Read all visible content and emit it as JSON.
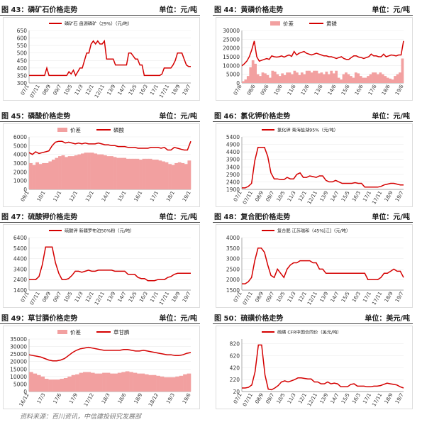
{
  "source_note": "资料来源：百川资讯，中信建投研究发展部",
  "colors": {
    "line": "#d40000",
    "bar": "#f2a0a0"
  },
  "chart_data": [
    {
      "id": "c43",
      "type": "line",
      "title": "图 43：磷矿石价格走势",
      "unit": "单位：元/吨",
      "legend": [
        "磷矿石  盘源磷矿（29%）（元/吨）"
      ],
      "ylim": [
        300,
        650
      ],
      "yticks": [
        300,
        350,
        400,
        450,
        500,
        550,
        600,
        650
      ],
      "xticks": [
        "07/1",
        "07/11",
        "08/9",
        "09/7",
        "10/5",
        "11/3",
        "12/1",
        "12/11",
        "13/9",
        "14/7",
        "15/5",
        "16/3",
        "17/1",
        "17/11",
        "18/9",
        "19/7"
      ],
      "series": [
        {
          "values": [
            350,
            350,
            350,
            350,
            350,
            350,
            350,
            350,
            400,
            350,
            350,
            350,
            350,
            350,
            350,
            350,
            350,
            350,
            375,
            360,
            385,
            350,
            375,
            400,
            400,
            450,
            500,
            500,
            560,
            580,
            560,
            580,
            560,
            560,
            580,
            460,
            460,
            460,
            460,
            420,
            420,
            420,
            420,
            420,
            420,
            500,
            500,
            480,
            460,
            460,
            420,
            420,
            350,
            350,
            350,
            350,
            350,
            350,
            350,
            350,
            360,
            400,
            400,
            400,
            400,
            420,
            450,
            500,
            500,
            500,
            460,
            420,
            410,
            410
          ]
        }
      ]
    },
    {
      "id": "c44",
      "type": "bar+line",
      "title": "图 44：黄磷价格走势",
      "unit": "单位：元/吨",
      "legend": [
        "价差",
        "黄磷"
      ],
      "ylim": [
        0,
        30000
      ],
      "yticks": [
        0,
        5000,
        10000,
        15000,
        20000,
        25000,
        30000
      ],
      "xticks": [
        "07/6",
        "08/6",
        "09/6",
        "10/6",
        "11/6",
        "12/6",
        "13/6",
        "14/6",
        "15/6",
        "16/6",
        "17/6",
        "18/6",
        "19/6"
      ],
      "series": [
        {
          "name": "黄磷",
          "values": [
            9800,
            11000,
            12500,
            15000,
            19000,
            24000,
            15000,
            12500,
            13000,
            13500,
            14000,
            13500,
            15500,
            15000,
            14800,
            15000,
            15500,
            14800,
            15500,
            16000,
            15200,
            18000,
            16000,
            17000,
            17500,
            18000,
            17000,
            16500,
            16000,
            16500,
            17000,
            16500,
            16000,
            15500,
            15500,
            15000,
            15000,
            14500,
            14000,
            14500,
            15000,
            14000,
            13500,
            13500,
            14500,
            15500,
            15500,
            14800,
            14500,
            14000,
            14500,
            15000,
            16500,
            15500,
            15500,
            15000,
            15000,
            16500,
            15000,
            15500,
            16000,
            15800,
            15500,
            16000,
            16000,
            24000
          ]
        },
        {
          "name": "价差",
          "values": [
            1000,
            2000,
            4000,
            9000,
            13000,
            11000,
            5000,
            4000,
            6000,
            5500,
            4500,
            3000,
            7000,
            6500,
            5000,
            4000,
            5500,
            4500,
            6000,
            6000,
            5000,
            7000,
            6000,
            4500,
            6000,
            5000,
            7000,
            7000,
            6000,
            7000,
            7000,
            5500,
            6000,
            5000,
            6500,
            5000,
            7000,
            5500,
            7000,
            3000,
            2000,
            5000,
            6000,
            5000,
            4000,
            3000,
            6000,
            5500,
            4000,
            3000,
            3000,
            4000,
            5000,
            6000,
            6000,
            5000,
            6000,
            5000,
            4000,
            3000,
            2500,
            2000,
            4000,
            5000,
            6000,
            14000
          ]
        }
      ]
    },
    {
      "id": "c45",
      "type": "bar+line",
      "title": "图 45：磷酸价格走势",
      "unit": "单位：元/吨",
      "legend": [
        "价差",
        "磷酸"
      ],
      "ylim": [
        0,
        6000
      ],
      "yticks": [
        0,
        1000,
        2000,
        3000,
        4000,
        5000,
        6000
      ],
      "xticks": [
        "09/1",
        "10/1",
        "11/1",
        "12/1",
        "13/1",
        "14/1",
        "15/1",
        "16/1",
        "17/1",
        "18/1",
        "19/1"
      ],
      "series": [
        {
          "name": "磷酸",
          "values": [
            4200,
            4000,
            4300,
            4100,
            4200,
            4300,
            4400,
            5000,
            5400,
            5500,
            5500,
            5300,
            5400,
            5300,
            5200,
            5300,
            5200,
            5300,
            5200,
            5200,
            5200,
            5300,
            5200,
            5100,
            5100,
            5000,
            5000,
            4900,
            4900,
            4900,
            4800,
            4800,
            4800,
            4700,
            4700,
            4700,
            4700,
            4800,
            4800,
            4800,
            4700,
            4800,
            4500,
            4500,
            4800,
            4700,
            4600,
            4500,
            4500,
            5500
          ]
        },
        {
          "name": "价差",
          "values": [
            3000,
            2800,
            3100,
            2900,
            3000,
            3000,
            3200,
            3400,
            3600,
            3800,
            3900,
            3700,
            3800,
            3800,
            3900,
            4000,
            4100,
            4200,
            4200,
            4200,
            4100,
            4000,
            4000,
            3900,
            3800,
            3800,
            3700,
            3600,
            3600,
            3600,
            3500,
            3500,
            3500,
            3500,
            3400,
            3500,
            3500,
            3500,
            3400,
            3400,
            3300,
            3200,
            3100,
            2900,
            2800,
            3000,
            3100,
            3000,
            2900,
            3300
          ]
        }
      ]
    },
    {
      "id": "c46",
      "type": "line",
      "title": "图 46：氯化钾价格走势",
      "unit": "单位：元/吨",
      "legend": [
        "氯化钾  青海盐湖95%（元/吨）"
      ],
      "ylim": [
        1900,
        5400
      ],
      "yticks": [
        1900,
        2400,
        2900,
        3400,
        3900,
        4400,
        4900,
        5400
      ],
      "xticks": [
        "07/1",
        "07/11",
        "08/9",
        "09/7",
        "10/5",
        "11/3",
        "12/1",
        "12/11",
        "13/9",
        "14/7",
        "15/5",
        "16/3",
        "17/1",
        "17/11",
        "18/9",
        "19/7"
      ],
      "series": [
        {
          "values": [
            2000,
            2000,
            2100,
            2300,
            3800,
            4700,
            4700,
            4700,
            4100,
            3000,
            2600,
            2600,
            2550,
            2550,
            2700,
            2600,
            2600,
            2900,
            3000,
            2700,
            2700,
            2800,
            2750,
            2700,
            2800,
            2800,
            2500,
            2400,
            2400,
            2500,
            2400,
            2300,
            2300,
            2300,
            2300,
            2350,
            2300,
            2300,
            2050,
            2050,
            2050,
            2050,
            2050,
            2100,
            2200,
            2250,
            2300,
            2300,
            2250,
            2200,
            2200
          ]
        }
      ]
    },
    {
      "id": "c47",
      "type": "line",
      "title": "图 47：硫酸钾价格走势",
      "unit": "单位：元/吨",
      "legend": [
        "硫酸钾  新疆罗布泊50%粉（元/吨）"
      ],
      "ylim": [
        1400,
        6400
      ],
      "yticks": [
        1400,
        2400,
        3400,
        4400,
        5400,
        6400
      ],
      "xticks": [
        "07/1",
        "07/11",
        "08/9",
        "09/7",
        "10/5",
        "11/3",
        "12/1",
        "12/11",
        "13/9",
        "14/7",
        "15/5",
        "16/3",
        "17/1",
        "17/11",
        "18/9",
        "19/7"
      ],
      "series": [
        {
          "values": [
            2400,
            2400,
            2400,
            2700,
            3800,
            5500,
            5500,
            5500,
            4000,
            3000,
            2400,
            2400,
            2500,
            2800,
            3200,
            3200,
            3100,
            3200,
            3300,
            3200,
            3200,
            3300,
            3300,
            3300,
            3300,
            3300,
            3200,
            3200,
            3200,
            3200,
            2900,
            2900,
            2900,
            2600,
            2500,
            2500,
            2300,
            2300,
            2300,
            2400,
            2400,
            2400,
            2600,
            2700,
            2900,
            3000,
            3000,
            3000,
            3000,
            3000
          ]
        }
      ]
    },
    {
      "id": "c48",
      "type": "line",
      "title": "图 48：复合肥价格走势",
      "unit": "单位：元/吨",
      "legend": [
        "复合肥  江苏瑞和（45%[江]（元/吨）"
      ],
      "ylim": [
        1500,
        4000
      ],
      "yticks": [
        1500,
        2000,
        2500,
        3000,
        3500,
        4000
      ],
      "xticks": [
        "07/1",
        "07/11",
        "08/9",
        "09/7",
        "10/5",
        "11/3",
        "12/1",
        "12/11",
        "13/9",
        "14/7",
        "15/5",
        "16/3",
        "17/1",
        "17/11",
        "18/9",
        "19/7"
      ],
      "series": [
        {
          "values": [
            1800,
            1800,
            1900,
            2100,
            2900,
            3500,
            3500,
            3300,
            2700,
            2200,
            2100,
            2500,
            2300,
            2100,
            2500,
            2700,
            2800,
            2800,
            2900,
            2900,
            2900,
            2900,
            2800,
            2800,
            2500,
            2500,
            2300,
            2300,
            2300,
            2300,
            2300,
            2300,
            2300,
            2300,
            2300,
            2300,
            2300,
            2300,
            2300,
            2000,
            2000,
            2000,
            2000,
            2100,
            2300,
            2300,
            2400,
            2500,
            2400,
            2400,
            2100
          ]
        }
      ]
    },
    {
      "id": "c49",
      "type": "bar+line",
      "title": "图 49：草甘膦价格走势",
      "unit": "单位：元/吨",
      "legend": [
        "价差",
        "草甘膦"
      ],
      "ylim": [
        0,
        35000
      ],
      "yticks": [
        0,
        5000,
        10000,
        15000,
        20000,
        25000,
        30000,
        35000
      ],
      "xticks": [
        "16/12",
        "17/3",
        "17/6",
        "17/9",
        "17/12",
        "18/3",
        "18/6",
        "18/9",
        "18/12",
        "19/3",
        "19/6"
      ],
      "series": [
        {
          "name": "草甘膦",
          "values": [
            24500,
            24000,
            23500,
            23000,
            22000,
            21000,
            20500,
            20500,
            21000,
            22000,
            24000,
            26000,
            27500,
            28500,
            29000,
            29500,
            29000,
            28500,
            28000,
            27500,
            27500,
            27500,
            27500,
            27500,
            28000,
            28000,
            27500,
            27000,
            27000,
            27500,
            27000,
            26500,
            26000,
            25500,
            25000,
            24500,
            24500,
            24000,
            24000,
            24500,
            25500,
            26000
          ]
        },
        {
          "name": "价差",
          "values": [
            13000,
            12000,
            11000,
            10000,
            8500,
            8000,
            8000,
            8000,
            8500,
            9000,
            10000,
            11000,
            11500,
            12500,
            13000,
            13000,
            12500,
            12000,
            12000,
            12500,
            12500,
            12000,
            12000,
            12500,
            13000,
            13500,
            13000,
            12500,
            12000,
            12000,
            11500,
            11000,
            11000,
            10500,
            10000,
            9500,
            9500,
            9500,
            10000,
            10500,
            11500,
            12000
          ]
        }
      ]
    },
    {
      "id": "c50",
      "type": "line",
      "title": "图 50：硫磺价格走势",
      "unit": "单位：美元/吨",
      "legend": [
        "硫磺  CFR中国合同价（美元/吨）"
      ],
      "ylim": [
        20,
        900
      ],
      "yticks": [
        20,
        220,
        420,
        620,
        820
      ],
      "xticks": [
        "07/1",
        "07/11",
        "08/9",
        "09/7",
        "10/5",
        "11/3",
        "12/1",
        "12/11",
        "13/9",
        "14/7",
        "15/5",
        "16/3",
        "17/1",
        "17/11",
        "18/9",
        "19/7"
      ],
      "series": [
        {
          "values": [
            80,
            80,
            90,
            130,
            350,
            800,
            800,
            300,
            60,
            50,
            80,
            120,
            180,
            200,
            180,
            200,
            220,
            250,
            250,
            240,
            230,
            230,
            180,
            180,
            150,
            150,
            180,
            150,
            160,
            150,
            100,
            100,
            100,
            140,
            150,
            110,
            110,
            110,
            100,
            100,
            110,
            110,
            120,
            140,
            160,
            150,
            140,
            130,
            100,
            80
          ]
        }
      ]
    }
  ]
}
